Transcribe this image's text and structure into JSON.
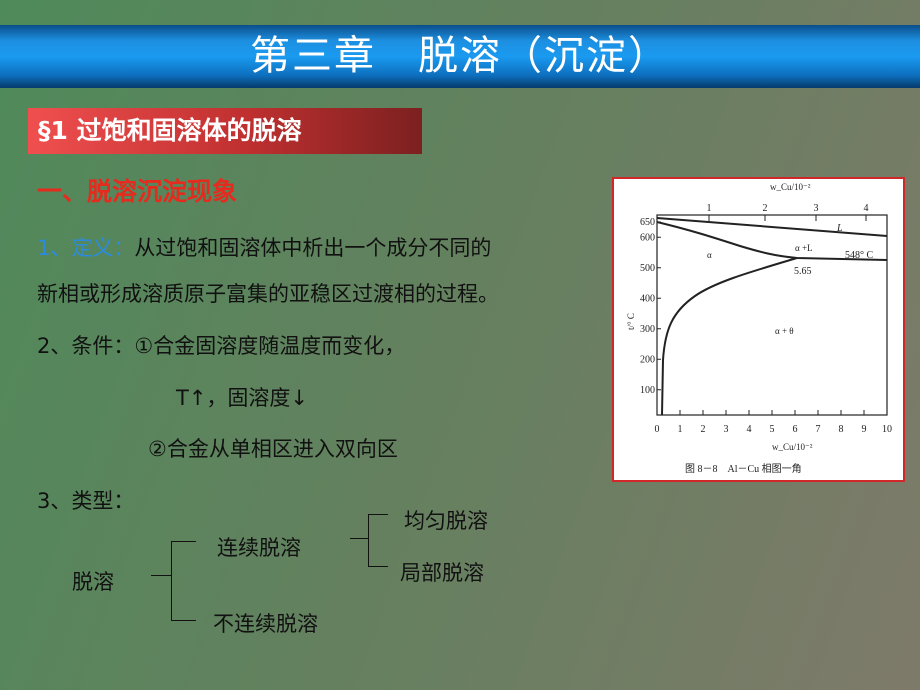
{
  "title": "第三章　脱溶（沉淀）",
  "section": "§1 过饱和固溶体的脱溶",
  "heading": "一、脱溶沉淀现象",
  "definition": {
    "label": "1、定义：",
    "line1": "从过饱和固溶体中析出一个成分不同的",
    "line2": "新相或形成溶质原子富集的亚稳区过渡相的过程。"
  },
  "conditions": {
    "label": "2、条件：",
    "item1": "①合金固溶度随温度而变化，",
    "item1_sub": "T↑，固溶度↓",
    "item2": "②合金从单相区进入双向区"
  },
  "types": {
    "label": "3、类型：",
    "root": "脱溶",
    "continuous": "连续脱溶",
    "discontinuous": "不连续脱溶",
    "uniform": "均匀脱溶",
    "local": "局部脱溶"
  },
  "figure": {
    "caption": "图 8－8　Al－Cu 相图一角",
    "top_axis_label": "w_Cu/10⁻²",
    "bottom_axis_label": "w_Cu/10⁻²",
    "y_axis_label": "t/° C",
    "top_ticks": [
      "1",
      "2",
      "3",
      "4"
    ],
    "x_ticks": [
      "0",
      "1",
      "2",
      "3",
      "4",
      "5",
      "6",
      "7",
      "8",
      "9",
      "10"
    ],
    "y_ticks": [
      "650",
      "600",
      "500",
      "400",
      "300",
      "200",
      "100"
    ],
    "labels": {
      "alpha": "α",
      "alpha_L": "α +L",
      "eutectic_temp": "548° C",
      "eutectic_comp": "5.65",
      "liquid": "L",
      "alpha_theta": "α + θ"
    }
  },
  "colors": {
    "title_bar": "#1a9af0",
    "section_bg": "#c03030",
    "heading": "#e52a1e",
    "label_blue": "#2b8be0",
    "figure_border": "#d02828"
  }
}
